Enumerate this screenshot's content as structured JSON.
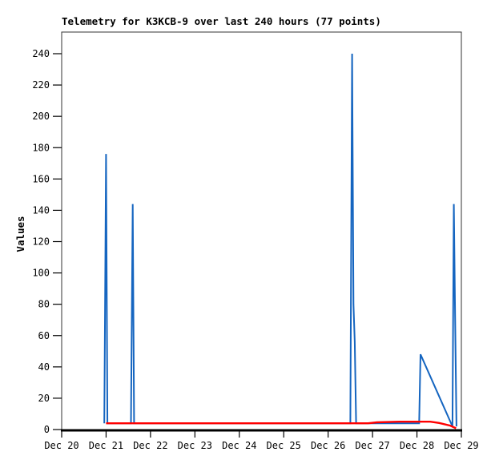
{
  "chart_data": {
    "type": "line",
    "title": "Telemetry for K3KCB-9 over last 240 hours (77 points)",
    "ylabel": "Values",
    "xlabel": "",
    "x_tick_labels": [
      "Dec 20",
      "Dec 21",
      "Dec 22",
      "Dec 23",
      "Dec 24",
      "Dec 25",
      "Dec 26",
      "Dec 27",
      "Dec 28",
      "Dec 29"
    ],
    "y_ticks": [
      0,
      20,
      40,
      60,
      80,
      100,
      120,
      140,
      160,
      180,
      200,
      220,
      240
    ],
    "x_range_days": [
      0,
      9
    ],
    "ylim": [
      0,
      254
    ],
    "grid": false,
    "legend_position": "none",
    "colors": {
      "series_blue": "#1565c0",
      "series_red": "#ff0000",
      "frame": "#333333",
      "axis": "#000000",
      "text": "#000000",
      "background": "#ffffff"
    },
    "series": [
      {
        "name": "telemetry-values-blue",
        "color_key": "series_blue",
        "stroke_width": 2,
        "points_day_value": [
          [
            0.96,
            4
          ],
          [
            0.98,
            88
          ],
          [
            1.0,
            176
          ],
          [
            1.03,
            4
          ],
          [
            1.56,
            4
          ],
          [
            1.6,
            144
          ],
          [
            1.63,
            4
          ],
          [
            6.5,
            4
          ],
          [
            6.54,
            240
          ],
          [
            6.57,
            80
          ],
          [
            6.6,
            56
          ],
          [
            6.63,
            4
          ],
          [
            8.05,
            4
          ],
          [
            8.08,
            48
          ],
          [
            8.8,
            2
          ],
          [
            8.83,
            144
          ],
          [
            8.86,
            72
          ],
          [
            8.89,
            2
          ]
        ]
      },
      {
        "name": "telemetry-values-red",
        "color_key": "series_red",
        "stroke_width": 2.4,
        "points_day_value": [
          [
            1.0,
            4
          ],
          [
            6.9,
            4
          ],
          [
            7.1,
            4.6
          ],
          [
            7.6,
            5
          ],
          [
            8.3,
            5
          ],
          [
            8.5,
            4.2
          ],
          [
            8.75,
            2.5
          ],
          [
            8.88,
            0.8
          ]
        ]
      }
    ]
  }
}
